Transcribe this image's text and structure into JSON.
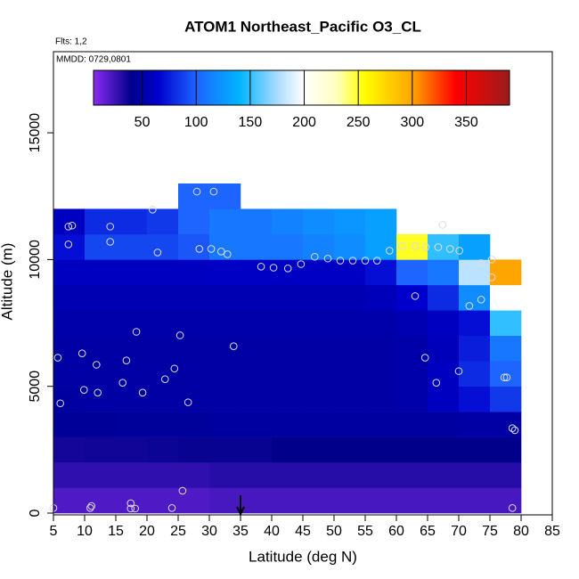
{
  "chart_data": {
    "type": "heatmap",
    "title": "ATOM1 Northeast_Pacific O3_CL",
    "subtitle": "Flts: 1,2",
    "annotation": "MMDD: 0729,0801",
    "xlabel": "Latitude (deg N)",
    "ylabel": "Altitude (m)",
    "xlim": [
      5,
      85
    ],
    "ylim": [
      0,
      18200
    ],
    "xticks": [
      5,
      10,
      15,
      20,
      25,
      30,
      35,
      40,
      45,
      50,
      55,
      60,
      65,
      70,
      75,
      80,
      85
    ],
    "yticks": [
      0,
      5000,
      10000,
      15000
    ],
    "x_edges": [
      5,
      10,
      15,
      20,
      25,
      30,
      35,
      40,
      45,
      50,
      55,
      60,
      65,
      70,
      75,
      80
    ],
    "y_edges": [
      0,
      1000,
      2000,
      3000,
      4000,
      5000,
      6000,
      7000,
      8000,
      9000,
      10000,
      11000,
      12000,
      13000
    ],
    "values": [
      [
        20,
        20,
        20,
        20,
        20,
        22,
        22,
        22,
        22,
        22,
        22,
        22,
        22,
        22,
        22
      ],
      [
        28,
        28,
        28,
        28,
        28,
        30,
        30,
        30,
        30,
        30,
        30,
        30,
        30,
        30,
        30
      ],
      [
        35,
        36,
        36,
        37,
        38,
        38,
        38,
        40,
        40,
        40,
        40,
        40,
        40,
        40,
        40
      ],
      [
        45,
        45,
        46,
        46,
        46,
        48,
        48,
        48,
        48,
        48,
        48,
        48,
        48,
        50,
        50
      ],
      [
        48,
        50,
        50,
        50,
        50,
        50,
        50,
        50,
        50,
        50,
        50,
        52,
        60,
        70,
        85
      ],
      [
        50,
        50,
        50,
        50,
        50,
        50,
        50,
        50,
        50,
        50,
        50,
        52,
        60,
        80,
        100
      ],
      [
        50,
        50,
        50,
        50,
        50,
        50,
        50,
        50,
        50,
        50,
        50,
        52,
        58,
        75,
        110
      ],
      [
        52,
        52,
        52,
        52,
        52,
        52,
        52,
        52,
        52,
        52,
        52,
        55,
        60,
        70,
        150
      ],
      [
        55,
        55,
        55,
        55,
        55,
        55,
        55,
        55,
        55,
        55,
        58,
        65,
        80,
        120,
        200
      ],
      [
        60,
        60,
        60,
        60,
        60,
        62,
        62,
        62,
        62,
        62,
        70,
        100,
        110,
        180,
        300
      ],
      [
        70,
        90,
        90,
        90,
        95,
        110,
        110,
        110,
        115,
        120,
        130,
        250,
        150,
        130,
        null
      ],
      [
        60,
        80,
        80,
        85,
        100,
        110,
        110,
        115,
        120,
        125,
        130,
        null,
        null,
        null,
        null
      ],
      [
        null,
        null,
        null,
        null,
        100,
        100,
        null,
        null,
        null,
        null,
        null,
        null,
        null,
        null,
        null
      ]
    ],
    "points": {
      "x": [
        5.0,
        10.9,
        11.1,
        17.4,
        17.4,
        18.1,
        24.0,
        25.7,
        78.6,
        6.1,
        9.9,
        12.1,
        16.1,
        19.3,
        22.9,
        26.6,
        5.7,
        9.6,
        11.9,
        16.7,
        24.4,
        18.3,
        25.3,
        33.9,
        7.4,
        8.0,
        7.4,
        14.1,
        14.1,
        20.9,
        21.7,
        28.0,
        30.7,
        28.4,
        30.3,
        31.9,
        32.9,
        38.3,
        40.3,
        42.6,
        44.7,
        46.9,
        49.0,
        51.0,
        53.0,
        55.0,
        56.9,
        58.9,
        60.9,
        63.0,
        64.7,
        66.7,
        68.6,
        70.1,
        67.4,
        73.6,
        75.3,
        75.3,
        63.0,
        71.7,
        73.6,
        64.6,
        66.4,
        70.0,
        77.3,
        77.7,
        78.6,
        79.0
      ],
      "y": [
        200,
        200,
        280,
        390,
        180,
        180,
        200,
        880,
        200,
        4330,
        4860,
        4750,
        5140,
        4750,
        5280,
        4370,
        6130,
        6300,
        5850,
        6020,
        5700,
        7150,
        7010,
        6580,
        11300,
        11340,
        10600,
        11300,
        10700,
        11970,
        10280,
        12680,
        12680,
        10420,
        10420,
        10320,
        10210,
        9720,
        9680,
        9650,
        9820,
        10110,
        10040,
        9960,
        9960,
        9960,
        9960,
        10350,
        10530,
        10530,
        10490,
        10490,
        10420,
        10350,
        11370,
        9860,
        10000,
        9300,
        8560,
        8170,
        8420,
        6130,
        5140,
        5600,
        5350,
        5350,
        3350,
        3270
      ]
    },
    "arrow_x": 35,
    "colorbar": {
      "lim": [
        5,
        390
      ],
      "ticks": [
        50,
        100,
        150,
        200,
        250,
        300,
        350
      ],
      "stops": [
        [
          5,
          "#8a2cf0"
        ],
        [
          40,
          "#00008b"
        ],
        [
          65,
          "#0000cd"
        ],
        [
          100,
          "#1e64ff"
        ],
        [
          140,
          "#00b4ff"
        ],
        [
          175,
          "#aadcff"
        ],
        [
          200,
          "#ffffff"
        ],
        [
          230,
          "#ffffc0"
        ],
        [
          255,
          "#ffff00"
        ],
        [
          300,
          "#ffa500"
        ],
        [
          340,
          "#ff0000"
        ],
        [
          390,
          "#9b1c1c"
        ]
      ]
    }
  }
}
